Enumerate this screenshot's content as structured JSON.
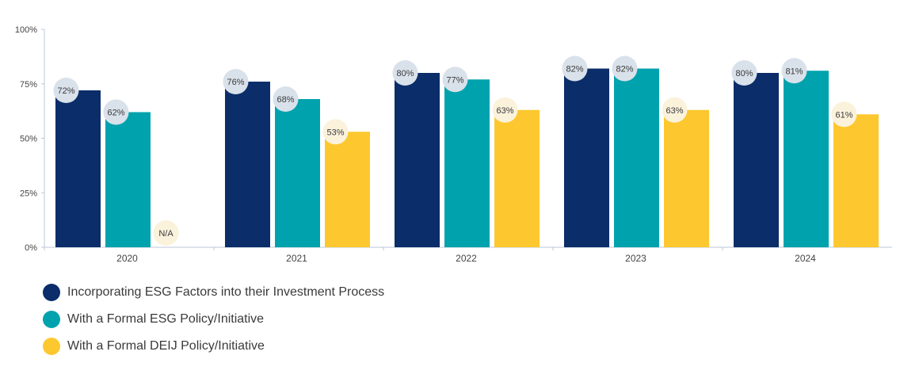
{
  "chart_data": {
    "type": "bar",
    "categories": [
      "2020",
      "2021",
      "2022",
      "2023",
      "2024"
    ],
    "series": [
      {
        "name": "Incorporating ESG Factors into their Investment Process",
        "color": "#0b2d69",
        "badge_color": "#d9e1ea",
        "values": [
          72,
          76,
          80,
          82,
          80
        ],
        "labels": [
          "72%",
          "76%",
          "80%",
          "82%",
          "80%"
        ]
      },
      {
        "name": "With a Formal ESG Policy/Initiative",
        "color": "#00a3ad",
        "badge_color": "#d9e1ea",
        "values": [
          62,
          68,
          77,
          82,
          81
        ],
        "labels": [
          "62%",
          "68%",
          "77%",
          "82%",
          "81%"
        ]
      },
      {
        "name": "With a Formal DEIJ Policy/Initiative",
        "color": "#fdc82f",
        "badge_color": "#fbf2dc",
        "values": [
          null,
          53,
          63,
          63,
          61
        ],
        "labels": [
          "N/A",
          "53%",
          "63%",
          "63%",
          "61%"
        ]
      }
    ],
    "ylim": [
      0,
      100
    ],
    "yticks": [
      0,
      25,
      50,
      75,
      100
    ],
    "ytick_labels": [
      "0%",
      "25%",
      "50%",
      "75%",
      "100%"
    ],
    "grid": false,
    "legend_position": "bottom-left"
  }
}
